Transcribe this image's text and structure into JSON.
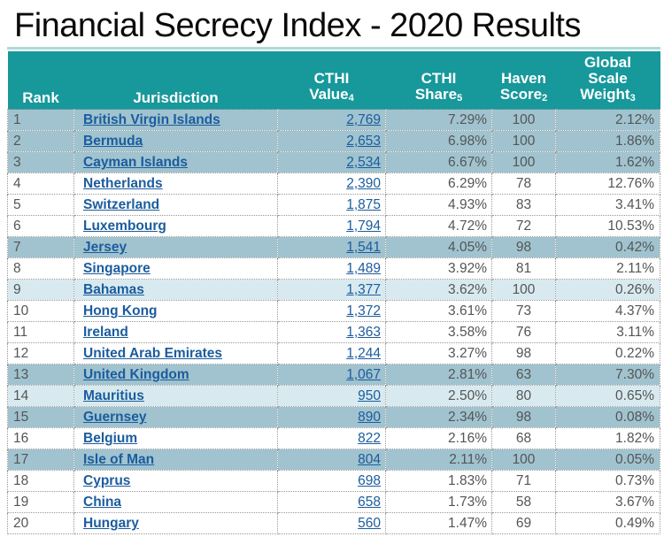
{
  "title": "Financial Secrecy Index - 2020 Results",
  "colors": {
    "header_bg": "#17989b",
    "row_medium": "#a0c3cf",
    "row_light": "#d8eaef",
    "link_blue": "#1b5c9e",
    "text_gray": "#555555",
    "divider_teal": "#aedbd8",
    "border_dotted": "#999999"
  },
  "chart_data": {
    "type": "table",
    "title": "Financial Secrecy Index - 2020 Results",
    "columns": [
      {
        "label": "Rank",
        "lines": [
          "Rank"
        ],
        "sup": ""
      },
      {
        "label": "Jurisdiction",
        "lines": [
          "Jurisdiction"
        ],
        "sup": ""
      },
      {
        "label": "CTHI Value",
        "lines": [
          "CTHI",
          "Value"
        ],
        "sup": "4"
      },
      {
        "label": "CTHI Share",
        "lines": [
          "CTHI",
          "Share"
        ],
        "sup": "5"
      },
      {
        "label": "Haven Score",
        "lines": [
          "Haven",
          "Score"
        ],
        "sup": "2"
      },
      {
        "label": "Global Scale Weight",
        "lines": [
          "Global",
          "Scale",
          "Weight"
        ],
        "sup": "3"
      }
    ],
    "rows": [
      {
        "rank": "1",
        "jurisdiction": "British Virgin Islands",
        "cthi_value": "2,769",
        "cthi_share": "7.29%",
        "haven_score": "100",
        "global_scale_weight": "2.12%",
        "shade": "medium"
      },
      {
        "rank": "2",
        "jurisdiction": "Bermuda",
        "cthi_value": "2,653",
        "cthi_share": "6.98%",
        "haven_score": "100",
        "global_scale_weight": "1.86%",
        "shade": "medium"
      },
      {
        "rank": "3",
        "jurisdiction": "Cayman Islands",
        "cthi_value": "2,534",
        "cthi_share": "6.67%",
        "haven_score": "100",
        "global_scale_weight": "1.62%",
        "shade": "medium"
      },
      {
        "rank": "4",
        "jurisdiction": "Netherlands",
        "cthi_value": "2,390",
        "cthi_share": "6.29%",
        "haven_score": "78",
        "global_scale_weight": "12.76%",
        "shade": "white"
      },
      {
        "rank": "5",
        "jurisdiction": "Switzerland",
        "cthi_value": "1,875",
        "cthi_share": "4.93%",
        "haven_score": "83",
        "global_scale_weight": "3.41%",
        "shade": "white"
      },
      {
        "rank": "6",
        "jurisdiction": "Luxembourg",
        "cthi_value": "1,794",
        "cthi_share": "4.72%",
        "haven_score": "72",
        "global_scale_weight": "10.53%",
        "shade": "white"
      },
      {
        "rank": "7",
        "jurisdiction": "Jersey",
        "cthi_value": "1,541",
        "cthi_share": "4.05%",
        "haven_score": "98",
        "global_scale_weight": "0.42%",
        "shade": "medium"
      },
      {
        "rank": "8",
        "jurisdiction": "Singapore",
        "cthi_value": "1,489",
        "cthi_share": "3.92%",
        "haven_score": "81",
        "global_scale_weight": "2.11%",
        "shade": "white"
      },
      {
        "rank": "9",
        "jurisdiction": "Bahamas",
        "cthi_value": "1,377",
        "cthi_share": "3.62%",
        "haven_score": "100",
        "global_scale_weight": "0.26%",
        "shade": "light"
      },
      {
        "rank": "10",
        "jurisdiction": "Hong Kong",
        "cthi_value": "1,372",
        "cthi_share": "3.61%",
        "haven_score": "73",
        "global_scale_weight": "4.37%",
        "shade": "white"
      },
      {
        "rank": "11",
        "jurisdiction": "Ireland",
        "cthi_value": "1,363",
        "cthi_share": "3.58%",
        "haven_score": "76",
        "global_scale_weight": "3.11%",
        "shade": "white"
      },
      {
        "rank": "12",
        "jurisdiction": "United Arab Emirates",
        "cthi_value": "1,244",
        "cthi_share": "3.27%",
        "haven_score": "98",
        "global_scale_weight": "0.22%",
        "shade": "white"
      },
      {
        "rank": "13",
        "jurisdiction": "United Kingdom",
        "cthi_value": "1,067",
        "cthi_share": "2.81%",
        "haven_score": "63",
        "global_scale_weight": "7.30%",
        "shade": "medium"
      },
      {
        "rank": "14",
        "jurisdiction": "Mauritius",
        "cthi_value": "950",
        "cthi_share": "2.50%",
        "haven_score": "80",
        "global_scale_weight": "0.65%",
        "shade": "light"
      },
      {
        "rank": "15",
        "jurisdiction": "Guernsey",
        "cthi_value": "890",
        "cthi_share": "2.34%",
        "haven_score": "98",
        "global_scale_weight": "0.08%",
        "shade": "medium"
      },
      {
        "rank": "16",
        "jurisdiction": "Belgium",
        "cthi_value": "822",
        "cthi_share": "2.16%",
        "haven_score": "68",
        "global_scale_weight": "1.82%",
        "shade": "white"
      },
      {
        "rank": "17",
        "jurisdiction": "Isle of Man",
        "cthi_value": "804",
        "cthi_share": "2.11%",
        "haven_score": "100",
        "global_scale_weight": "0.05%",
        "shade": "medium"
      },
      {
        "rank": "18",
        "jurisdiction": "Cyprus",
        "cthi_value": "698",
        "cthi_share": "1.83%",
        "haven_score": "71",
        "global_scale_weight": "0.73%",
        "shade": "white"
      },
      {
        "rank": "19",
        "jurisdiction": "China",
        "cthi_value": "658",
        "cthi_share": "1.73%",
        "haven_score": "58",
        "global_scale_weight": "3.67%",
        "shade": "white"
      },
      {
        "rank": "20",
        "jurisdiction": "Hungary",
        "cthi_value": "560",
        "cthi_share": "1.47%",
        "haven_score": "69",
        "global_scale_weight": "0.49%",
        "shade": "white"
      }
    ]
  }
}
